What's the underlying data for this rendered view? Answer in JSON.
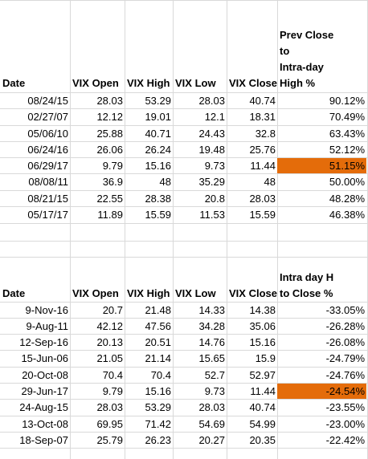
{
  "accent": "#e46c0a",
  "table1": {
    "headers": [
      "Date",
      "VIX Open",
      "VIX High",
      "VIX Low",
      "VIX Close"
    ],
    "last_header_lines": [
      "Prev Close",
      "to",
      "Intra-day",
      "High %"
    ],
    "highlight_row": 4,
    "rows": [
      [
        "08/24/15",
        "28.03",
        "53.29",
        "28.03",
        "40.74",
        "90.12%"
      ],
      [
        "02/27/07",
        "12.12",
        "19.01",
        "12.1",
        "18.31",
        "70.49%"
      ],
      [
        "05/06/10",
        "25.88",
        "40.71",
        "24.43",
        "32.8",
        "63.43%"
      ],
      [
        "06/24/16",
        "26.06",
        "26.24",
        "19.48",
        "25.76",
        "52.12%"
      ],
      [
        "06/29/17",
        "9.79",
        "15.16",
        "9.73",
        "11.44",
        "51.15%"
      ],
      [
        "08/08/11",
        "36.9",
        "48",
        "35.29",
        "48",
        "50.00%"
      ],
      [
        "08/21/15",
        "22.55",
        "28.38",
        "20.8",
        "28.03",
        "48.28%"
      ],
      [
        "05/17/17",
        "11.89",
        "15.59",
        "11.53",
        "15.59",
        "46.38%"
      ]
    ]
  },
  "table2": {
    "headers": [
      "Date",
      "VIX Open",
      "VIX High",
      "VIX Low",
      "VIX Close"
    ],
    "last_header_lines": [
      "Intra day H",
      "to Close %"
    ],
    "highlight_row": 5,
    "rows": [
      [
        "9-Nov-16",
        "20.7",
        "21.48",
        "14.33",
        "14.38",
        "-33.05%"
      ],
      [
        "9-Aug-11",
        "42.12",
        "47.56",
        "34.28",
        "35.06",
        "-26.28%"
      ],
      [
        "12-Sep-16",
        "20.13",
        "20.51",
        "14.76",
        "15.16",
        "-26.08%"
      ],
      [
        "15-Jun-06",
        "21.05",
        "21.14",
        "15.65",
        "15.9",
        "-24.79%"
      ],
      [
        "20-Oct-08",
        "70.4",
        "70.4",
        "52.7",
        "52.97",
        "-24.76%"
      ],
      [
        "29-Jun-17",
        "9.79",
        "15.16",
        "9.73",
        "11.44",
        "-24.54%"
      ],
      [
        "24-Aug-15",
        "28.03",
        "53.29",
        "28.03",
        "40.74",
        "-23.55%"
      ],
      [
        "13-Oct-08",
        "69.95",
        "71.42",
        "54.69",
        "54.99",
        "-23.00%"
      ],
      [
        "18-Sep-07",
        "25.79",
        "26.23",
        "20.27",
        "20.35",
        "-22.42%"
      ]
    ]
  }
}
